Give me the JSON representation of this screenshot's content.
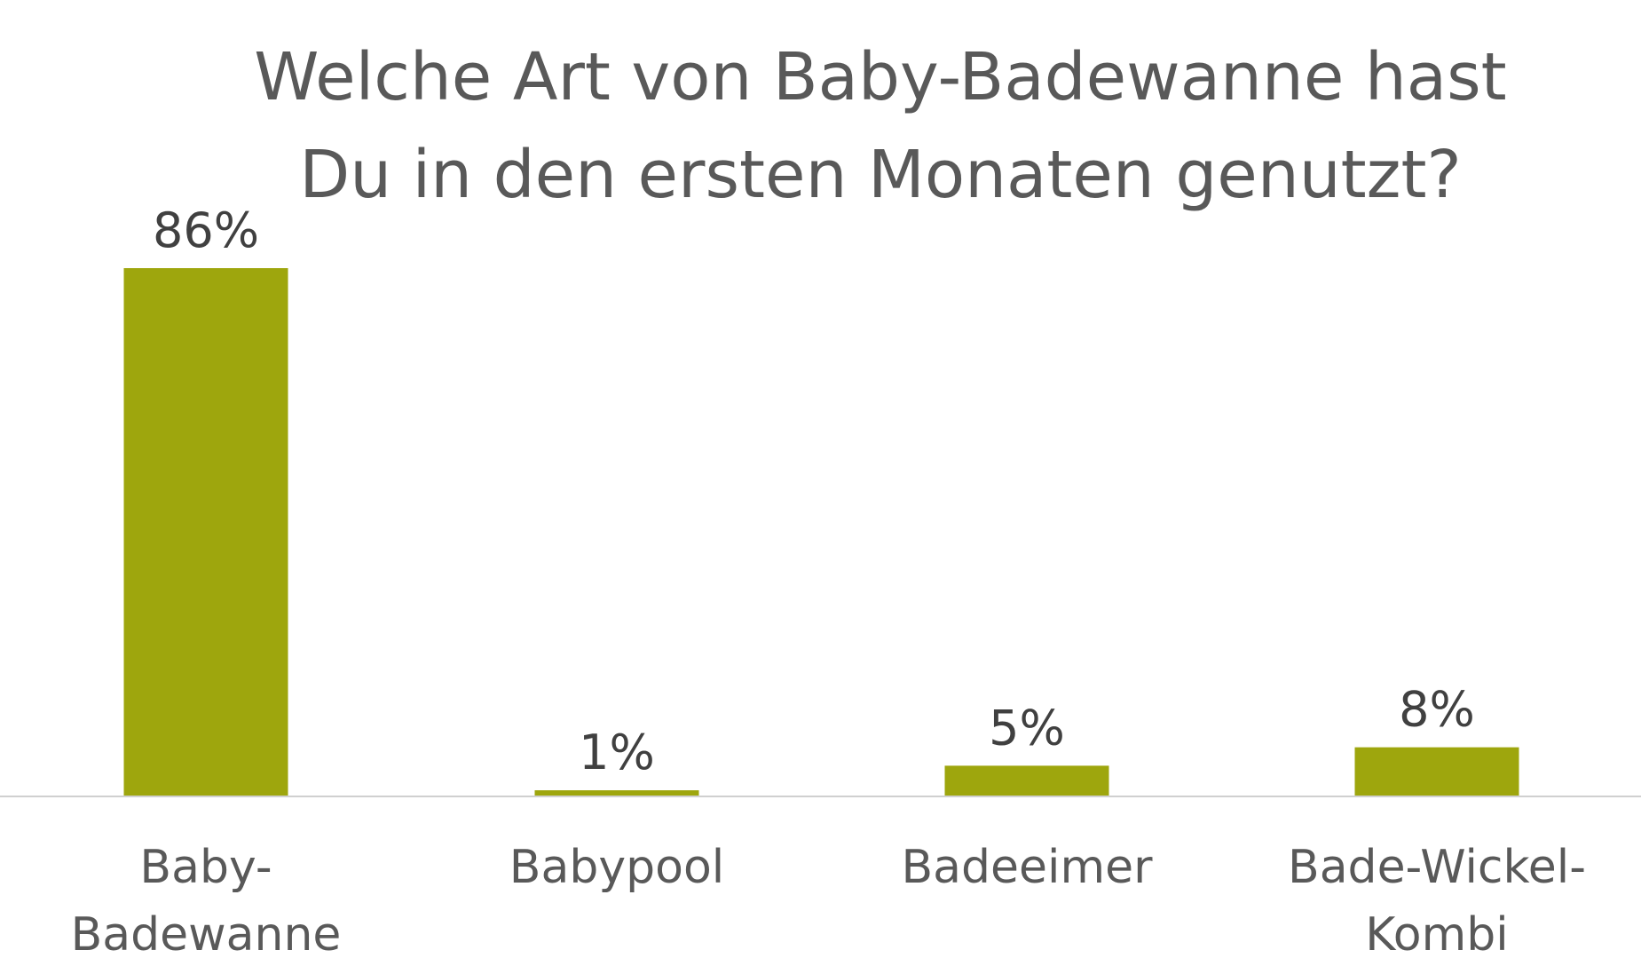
{
  "chart_data": {
    "type": "bar",
    "title_lines": [
      "Welche Art von Baby-Badewanne hast",
      "Du in den ersten Monaten genutzt?"
    ],
    "categories": [
      [
        "Baby-",
        "Badewanne"
      ],
      [
        "Babypool"
      ],
      [
        "Badeeimer"
      ],
      [
        "Bade-Wickel-",
        "Kombi"
      ]
    ],
    "values": [
      86,
      1,
      5,
      8
    ],
    "value_labels": [
      "86%",
      "1%",
      "5%",
      "8%"
    ],
    "ylim": [
      0,
      86
    ],
    "grid": false,
    "legend": "none",
    "colors": {
      "bar": "#9ea60d",
      "axis": "#d0d0d0",
      "title": "#595959",
      "value_label": "#404040",
      "category_label": "#595959"
    }
  }
}
